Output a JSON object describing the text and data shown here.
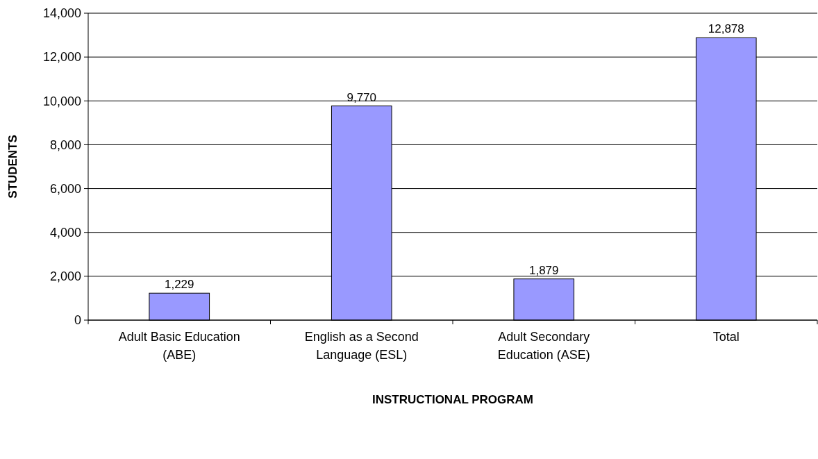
{
  "chart_data": {
    "type": "bar",
    "xlabel": "INSTRUCTIONAL PROGRAM",
    "ylabel": "STUDENTS",
    "categories": [
      "Adult Basic Education (ABE)",
      "English as a Second Language (ESL)",
      "Adult Secondary Education (ASE)",
      "Total"
    ],
    "values": [
      1229,
      9770,
      1879,
      12878
    ],
    "value_labels": [
      "1,229",
      "9,770",
      "1,879",
      "12,878"
    ],
    "color": "#9999ff",
    "ylim": [
      0,
      14000
    ],
    "yticks": [
      {
        "value": 0,
        "label": "0"
      },
      {
        "value": 2000,
        "label": "2,000"
      },
      {
        "value": 4000,
        "label": "4,000"
      },
      {
        "value": 6000,
        "label": "6,000"
      },
      {
        "value": 8000,
        "label": "8,000"
      },
      {
        "value": 10000,
        "label": "10,000"
      },
      {
        "value": 12000,
        "label": "12,000"
      },
      {
        "value": 14000,
        "label": "14,000"
      }
    ],
    "grid": "y"
  }
}
